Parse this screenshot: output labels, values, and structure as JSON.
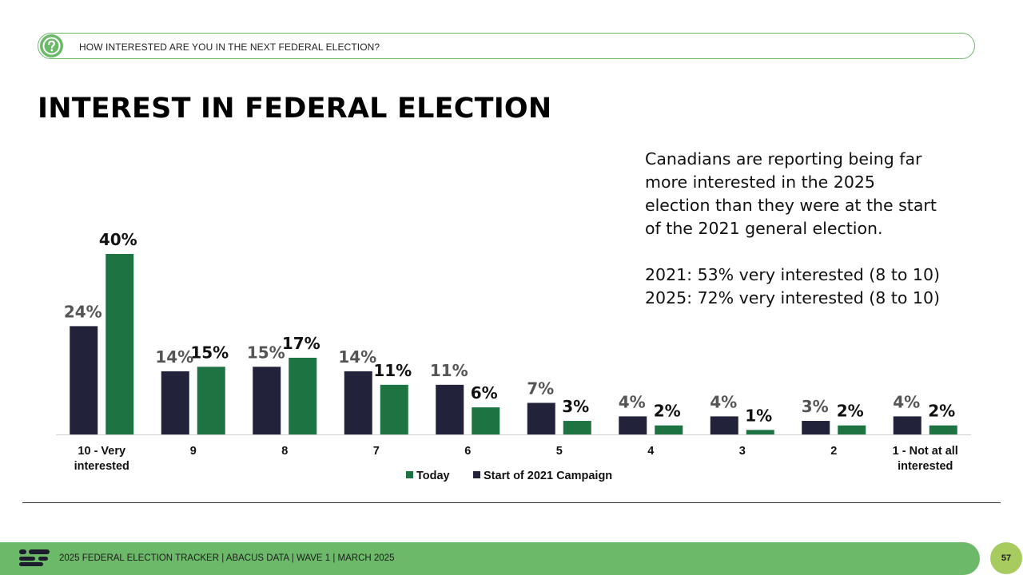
{
  "question": {
    "text": "HOW INTERESTED ARE YOU IN THE NEXT FEDERAL ELECTION?",
    "icon": "question-mark-icon"
  },
  "title": "INTEREST IN FEDERAL ELECTION",
  "insight": {
    "line1": "Canadians are reporting being far",
    "line2": "more interested in the 2025",
    "line3": "election than they were at the start",
    "line4": "of the 2021 general election.",
    "stat1": "2021: 53% very interested (8 to 10)",
    "stat2": "2025: 72% very interested (8 to 10)"
  },
  "chart_data": {
    "type": "bar",
    "categories": [
      "10 - Very interested",
      "9",
      "8",
      "7",
      "6",
      "5",
      "4",
      "3",
      "2",
      "1 - Not at all interested"
    ],
    "series": [
      {
        "name": "Start of 2021 Campaign",
        "color": "#22223a",
        "label_color": "#555555",
        "values": [
          24,
          14,
          15,
          14,
          11,
          7,
          4,
          4,
          3,
          4
        ]
      },
      {
        "name": "Today",
        "color": "#1d7341",
        "label_color": "#111111",
        "values": [
          40,
          15,
          17,
          11,
          6,
          3,
          2,
          1,
          2,
          2
        ]
      }
    ],
    "value_suffix": "%",
    "legend": {
      "position": "bottom",
      "order": [
        "Today",
        "Start of 2021 Campaign"
      ]
    },
    "ylim": [
      0,
      40
    ],
    "grid": false
  },
  "footer": {
    "text": "2025 FEDERAL ELECTION TRACKER  |  ABACUS DATA  |  WAVE 1  |  MARCH 2025",
    "page_number": "57",
    "logo_icon": "abacus-logo-icon"
  },
  "colors": {
    "accent_green": "#6cb96a",
    "page_badge": "#a7cb5e"
  }
}
